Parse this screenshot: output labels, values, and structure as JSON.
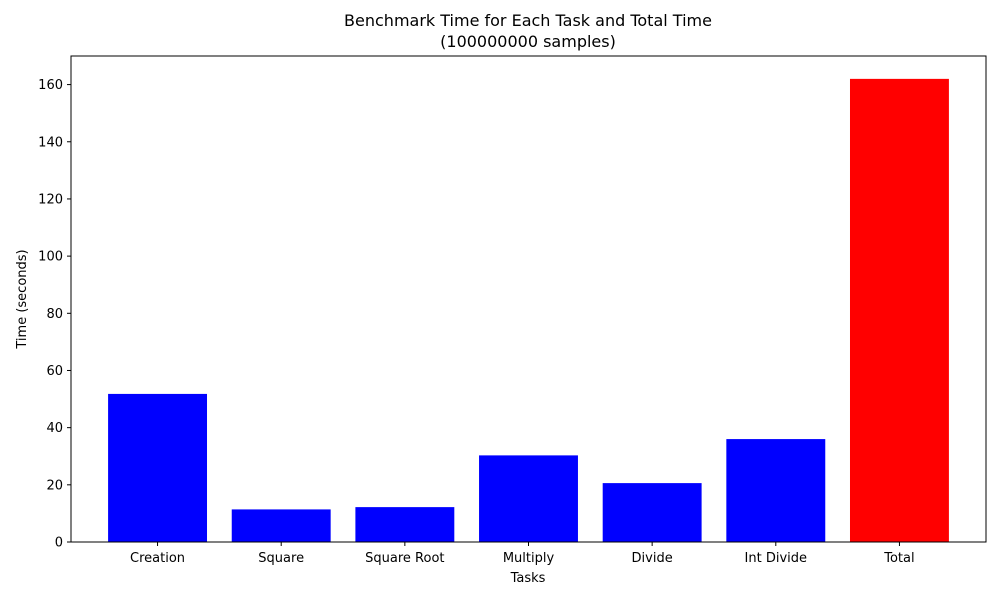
{
  "chart_data": {
    "type": "bar",
    "title": "Benchmark Time for Each Task and Total Time",
    "subtitle": "(100000000 samples)",
    "xlabel": "Tasks",
    "ylabel": "Time (seconds)",
    "categories": [
      "Creation",
      "Square",
      "Square Root",
      "Multiply",
      "Divide",
      "Int Divide",
      "Total"
    ],
    "values": [
      51.8,
      11.4,
      12.2,
      30.3,
      20.6,
      36.0,
      162.0
    ],
    "colors": [
      "#0000ff",
      "#0000ff",
      "#0000ff",
      "#0000ff",
      "#0000ff",
      "#0000ff",
      "#ff0000"
    ],
    "ylim": [
      0,
      170
    ],
    "yticks": [
      0,
      20,
      40,
      60,
      80,
      100,
      120,
      140,
      160
    ],
    "grid": false,
    "legend": "none"
  }
}
